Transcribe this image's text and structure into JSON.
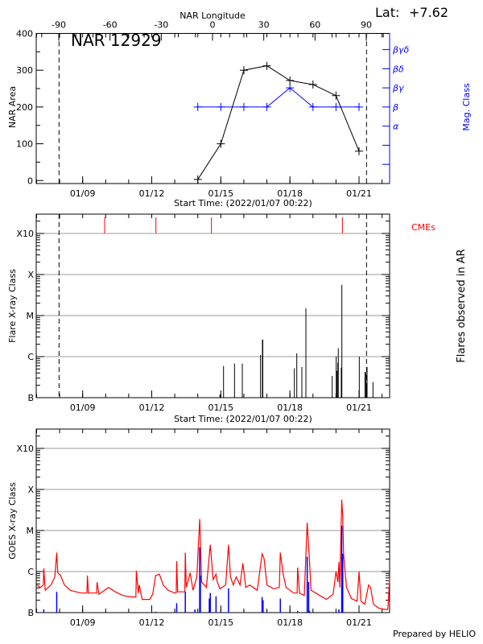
{
  "header": {
    "lat_label": "Lat:",
    "lat_value": "+7.62",
    "region_title": "NAR 12929",
    "top_axis_title": "NAR Longitude",
    "footer": "Prepared by HELIO"
  },
  "colors": {
    "area": "#000000",
    "mag_class": "#0000ff",
    "cme": "#ff0000",
    "goes_long": "#ff0000",
    "goes_short": "#0000ff",
    "grid": "#999999",
    "flare": "#000000"
  },
  "chart_data": [
    {
      "type": "line",
      "title": "NAR 12929",
      "xlabel": "Start Time: (2022/01/07 00:22)",
      "ylabel": "NAR Area",
      "y2label": "Mag. Class",
      "x2label": "NAR Longitude",
      "xlim": [
        "01/07 00:22",
        "01/22 08:50"
      ],
      "ylim": [
        -8,
        400
      ],
      "yticks": [
        0,
        100,
        200,
        300,
        400
      ],
      "xticks": [
        "01/09",
        "01/12",
        "01/15",
        "01/18",
        "01/21"
      ],
      "x2ticks": [
        -90,
        -60,
        -30,
        0,
        30,
        60,
        90
      ],
      "limb_lines": [
        "01/07 23:24",
        "01/21 07:50"
      ],
      "mag_class_levels": [
        "",
        "",
        "α",
        "β",
        "βγ",
        "βδ",
        "βγδ"
      ],
      "series": [
        {
          "name": "NAR Area",
          "x": [
            "01/14 00:00",
            "01/15 00:00",
            "01/16 00:00",
            "01/17 00:00",
            "01/18 00:00",
            "01/19 00:00",
            "01/20 00:00",
            "01/21 00:00"
          ],
          "values": [
            3,
            100,
            300,
            312,
            272,
            261,
            231,
            80
          ]
        },
        {
          "name": "Mag. Class",
          "x": [
            "01/14 00:00",
            "01/15 00:00",
            "01/16 00:00",
            "01/17 00:00",
            "01/18 00:00",
            "01/19 00:00",
            "01/20 00:00",
            "01/21 00:00"
          ],
          "values": [
            "β",
            "β",
            "β",
            "β",
            "βγ",
            "β",
            "β",
            "β"
          ]
        }
      ]
    },
    {
      "type": "bar",
      "xlabel": "Start Time: (2022/01/07 00:22)",
      "ylabel": "Flare X-ray Class",
      "y2label": "Flares observed in AR",
      "cme_label": "CMEs",
      "y_scale": "log",
      "ylim": [
        1e-07,
        0.003
      ],
      "ytick_labels": [
        {
          "v": 1e-07,
          "label": "B"
        },
        {
          "v": 1e-06,
          "label": "C"
        },
        {
          "v": 1e-05,
          "label": "M"
        },
        {
          "v": 0.0001,
          "label": "X"
        },
        {
          "v": 0.001,
          "label": "X10"
        }
      ],
      "xticks": [
        "01/09",
        "01/12",
        "01/15",
        "01/18",
        "01/21"
      ],
      "grid": true,
      "limb_lines": [
        "01/07 23:24",
        "01/21 07:50"
      ],
      "cmes": [
        "01/09 22:55",
        "01/12 04:21",
        "01/14 14:13",
        "01/20 06:40"
      ],
      "flares": [
        {
          "t": "01/14 23:00",
          "flux": 1.2e-07
        },
        {
          "t": "01/15 02:50",
          "flux": 5.9e-07
        },
        {
          "t": "01/15 14:15",
          "flux": 6.8e-07
        },
        {
          "t": "01/15 22:22",
          "flux": 6.8e-07
        },
        {
          "t": "01/16 17:24",
          "flux": 1.1e-06
        },
        {
          "t": "01/16 19:20",
          "flux": 2.6e-06
        },
        {
          "t": "01/16 19:45",
          "flux": 2.6e-06
        },
        {
          "t": "01/17 23:53",
          "flux": 1.3e-07
        },
        {
          "t": "01/18 04:38",
          "flux": 5.2e-07
        },
        {
          "t": "01/18 07:09",
          "flux": 1.2e-06
        },
        {
          "t": "01/18 12:27",
          "flux": 5.6e-07
        },
        {
          "t": "01/18 16:39",
          "flux": 1.5e-05
        },
        {
          "t": "01/19 20:02",
          "flux": 3.4e-07
        },
        {
          "t": "01/20 00:14",
          "flux": 1e-06
        },
        {
          "t": "01/20 01:05",
          "flux": 4.5e-07
        },
        {
          "t": "01/20 01:55",
          "flux": 7.1e-07
        },
        {
          "t": "01/20 02:24",
          "flux": 1.6e-06
        },
        {
          "t": "01/20 05:31",
          "flux": 5.4e-07
        },
        {
          "t": "01/20 06:07",
          "flux": 5.6e-05
        },
        {
          "t": "01/21 00:17",
          "flux": 1e-06
        },
        {
          "t": "01/21 06:10",
          "flux": 4.2e-07
        },
        {
          "t": "01/21 07:12",
          "flux": 4.2e-07
        },
        {
          "t": "01/21 07:40",
          "flux": 2.2e-07
        },
        {
          "t": "01/21 08:24",
          "flux": 5.6e-07
        },
        {
          "t": "01/21 14:33",
          "flux": 2.4e-07
        }
      ]
    },
    {
      "type": "line",
      "ylabel": "GOES X-ray Class",
      "y_scale": "log",
      "ylim": [
        1e-07,
        0.003
      ],
      "ytick_labels": [
        {
          "v": 1e-07,
          "label": "B"
        },
        {
          "v": 1e-06,
          "label": "C"
        },
        {
          "v": 1e-05,
          "label": "M"
        },
        {
          "v": 0.0001,
          "label": "X"
        },
        {
          "v": 0.001,
          "label": "X10"
        }
      ],
      "xticks": [
        "01/09",
        "01/12",
        "01/15",
        "01/18",
        "01/21"
      ],
      "grid": true,
      "series": [
        {
          "color": "#ff0000",
          "points": [
            [
              "01/07 00:22",
              4.7e-07
            ],
            [
              "01/07 04:00",
              4.1e-07
            ],
            [
              "01/07 07:00",
              4.7e-07
            ],
            [
              "01/07 07:30",
              1.2e-06
            ],
            [
              "01/07 09:00",
              3.5e-07
            ],
            [
              "01/07 15:00",
              4.7e-07
            ],
            [
              "01/07 19:00",
              7.4e-07
            ],
            [
              "01/07 21:00",
              2.9e-06
            ],
            [
              "01/07 22:00",
              9.3e-07
            ],
            [
              "01/08 01:00",
              8e-07
            ],
            [
              "01/08 05:00",
              4.7e-07
            ],
            [
              "01/08 11:00",
              3.5e-07
            ],
            [
              "01/08 22:00",
              3e-07
            ],
            [
              "01/09 04:30",
              3e-07
            ],
            [
              "01/09 05:00",
              8e-07
            ],
            [
              "01/09 06:00",
              3e-07
            ],
            [
              "01/09 14:30",
              3e-07
            ],
            [
              "01/09 15:00",
              5.5e-07
            ],
            [
              "01/09 17:00",
              2.8e-07
            ],
            [
              "01/10 03:00",
              4.1e-07
            ],
            [
              "01/10 10:00",
              3.2e-07
            ],
            [
              "01/10 18:00",
              2.6e-07
            ],
            [
              "01/11 03:00",
              2.4e-07
            ],
            [
              "01/11 07:30",
              2.4e-07
            ],
            [
              "01/11 08:00",
              1.05e-06
            ],
            [
              "01/11 10:00",
              3e-07
            ],
            [
              "01/11 11:00",
              4.7e-07
            ],
            [
              "01/11 14:00",
              2.1e-07
            ],
            [
              "01/11 22:00",
              2.1e-07
            ],
            [
              "01/12 01:00",
              2.8e-07
            ],
            [
              "01/12 04:00",
              8e-07
            ],
            [
              "01/12 08:00",
              8.6e-07
            ],
            [
              "01/12 12:00",
              4.7e-07
            ],
            [
              "01/12 17:00",
              3.5e-07
            ],
            [
              "01/13 00:00",
              3e-07
            ],
            [
              "01/13 01:30",
              3e-07
            ],
            [
              "01/13 02:00",
              1.8e-06
            ],
            [
              "01/13 03:00",
              3.2e-07
            ],
            [
              "01/13 10:30",
              3.2e-07
            ],
            [
              "01/13 11:00",
              2.9e-06
            ],
            [
              "01/13 12:00",
              4.1e-07
            ],
            [
              "01/13 16:00",
              9.3e-07
            ],
            [
              "01/13 19:00",
              3.5e-07
            ],
            [
              "01/13 23:00",
              7.4e-07
            ],
            [
              "01/14 02:00",
              1.9e-05
            ],
            [
              "01/14 04:00",
              5.5e-07
            ],
            [
              "01/14 09:00",
              4.1e-07
            ],
            [
              "01/14 13:00",
              4.5e-06
            ],
            [
              "01/14 16:00",
              6.4e-07
            ],
            [
              "01/14 19:00",
              8.6e-07
            ],
            [
              "01/14 20:00",
              5.9e-07
            ],
            [
              "01/14 23:00",
              3.8e-07
            ],
            [
              "01/15 05:00",
              4.7e-07
            ],
            [
              "01/15 08:00",
              4.5e-06
            ],
            [
              "01/15 10:00",
              7.4e-07
            ],
            [
              "01/15 13:00",
              4.7e-07
            ],
            [
              "01/15 16:00",
              7.4e-07
            ],
            [
              "01/15 20:00",
              4.7e-07
            ],
            [
              "01/15 23:00",
              1.6e-06
            ],
            [
              "01/16 02:00",
              4.1e-07
            ],
            [
              "01/16 06:00",
              4.7e-07
            ],
            [
              "01/16 14:00",
              3.5e-07
            ],
            [
              "01/16 19:00",
              2.7e-06
            ],
            [
              "01/16 21:00",
              2.1e-06
            ],
            [
              "01/17 00:00",
              4.7e-07
            ],
            [
              "01/17 07:00",
              3.8e-07
            ],
            [
              "01/17 13:00",
              4.1e-07
            ],
            [
              "01/17 14:00",
              2.9e-06
            ],
            [
              "01/17 17:00",
              8.6e-07
            ],
            [
              "01/17 20:00",
              4.1e-07
            ],
            [
              "01/18 04:00",
              3e-07
            ],
            [
              "01/18 07:30",
              3e-07
            ],
            [
              "01/18 08:00",
              1.25e-06
            ],
            [
              "01/18 10:00",
              3e-07
            ],
            [
              "01/18 15:00",
              2.6e-07
            ],
            [
              "01/18 18:00",
              1.55e-05
            ],
            [
              "01/18 19:00",
              6.1e-06
            ],
            [
              "01/18 20:00",
              2.7e-06
            ],
            [
              "01/18 22:00",
              3.5e-07
            ],
            [
              "01/19 05:00",
              2.8e-07
            ],
            [
              "01/19 14:00",
              2.1e-07
            ],
            [
              "01/19 21:00",
              2.8e-07
            ],
            [
              "01/20 00:00",
              1e-06
            ],
            [
              "01/20 02:00",
              5.5e-07
            ],
            [
              "01/20 03:00",
              1.7e-06
            ],
            [
              "01/20 04:00",
              4.1e-07
            ],
            [
              "01/20 06:00",
              5.6e-05
            ],
            [
              "01/20 07:00",
              2.4e-05
            ],
            [
              "01/20 08:00",
              2.5e-06
            ],
            [
              "01/20 11:00",
              4.1e-07
            ],
            [
              "01/20 16:00",
              2.2e-07
            ],
            [
              "01/20 22:00",
              1.9e-07
            ],
            [
              "01/21 00:00",
              1e-06
            ],
            [
              "01/21 02:00",
              1.9e-07
            ],
            [
              "01/21 06:00",
              1.6e-07
            ],
            [
              "01/21 10:00",
              4.7e-07
            ],
            [
              "01/21 12:00",
              4.1e-07
            ],
            [
              "01/21 15:00",
              1.6e-07
            ],
            [
              "01/21 20:00",
              1.3e-07
            ],
            [
              "01/22 02:00",
              1.2e-07
            ],
            [
              "01/22 06:00",
              1.2e-07
            ],
            [
              "01/22 08:00",
              6.9e-07
            ]
          ]
        },
        {
          "color": "#0000ff",
          "peaks": [
            [
              "01/07 07:30",
              1.2e-07
            ],
            [
              "01/07 21:00",
              3.2e-07
            ],
            [
              "01/12 04:00",
              1.05e-07
            ],
            [
              "01/13 02:00",
              1.7e-07
            ],
            [
              "01/13 11:00",
              3.2e-07
            ],
            [
              "01/13 21:00",
              1.2e-07
            ],
            [
              "01/14 02:00",
              3.9e-06
            ],
            [
              "01/14 02:40",
              8e-07
            ],
            [
              "01/14 12:00",
              2.2e-07
            ],
            [
              "01/14 13:00",
              3e-07
            ],
            [
              "01/14 19:00",
              2.5e-07
            ],
            [
              "01/15 08:00",
              3.9e-07
            ],
            [
              "01/16 19:00",
              2.4e-07
            ],
            [
              "01/16 20:00",
              2e-07
            ],
            [
              "01/17 14:00",
              2.2e-07
            ],
            [
              "01/18 08:00",
              1.1e-07
            ],
            [
              "01/18 18:00",
              2.3e-06
            ],
            [
              "01/18 19:30",
              5.6e-07
            ],
            [
              "01/18 20:30",
              1.1e-07
            ],
            [
              "01/20 03:00",
              1.2e-07
            ],
            [
              "01/20 06:00",
              1.3e-05
            ],
            [
              "01/20 07:00",
              2.7e-06
            ]
          ]
        }
      ]
    }
  ]
}
